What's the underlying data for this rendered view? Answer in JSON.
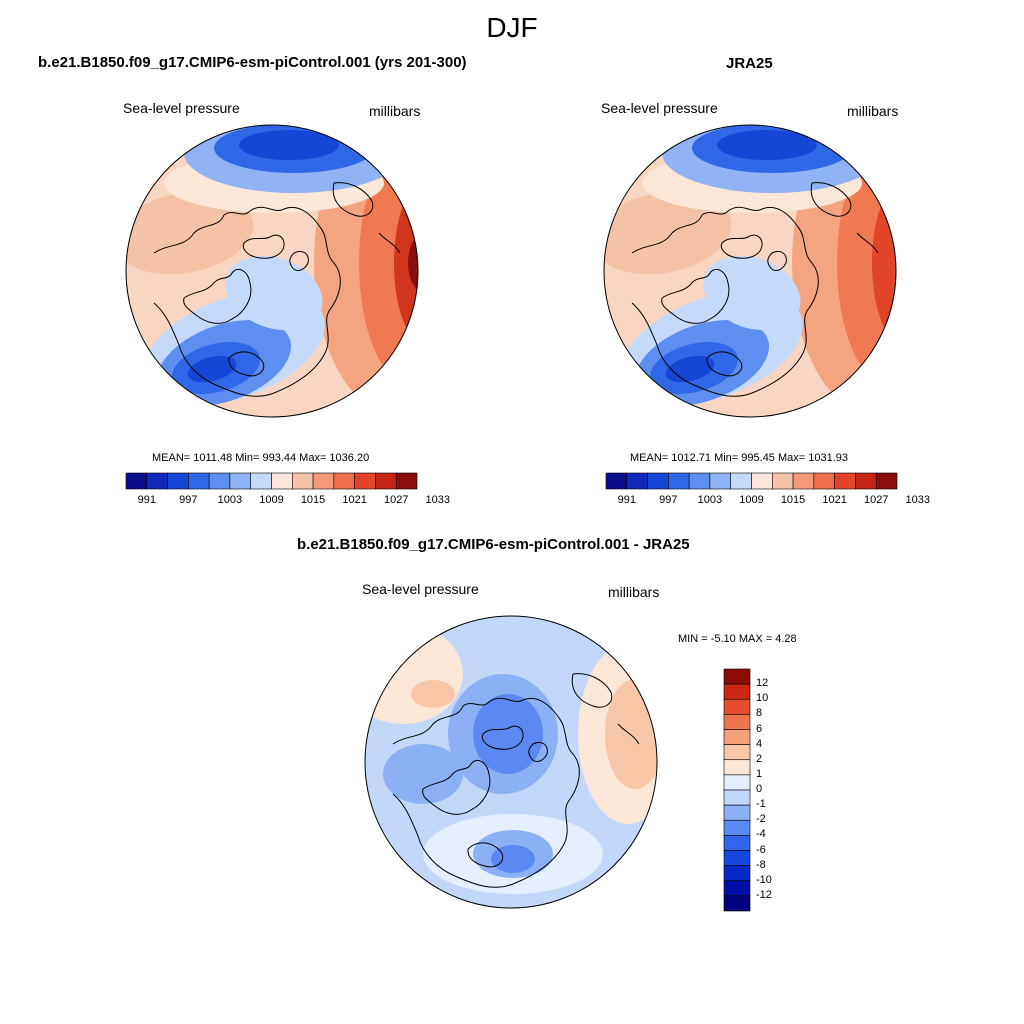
{
  "season": "DJF",
  "colors": {
    "abs_palette": [
      "#0a0d8c",
      "#0f28b8",
      "#1447d6",
      "#2f68e6",
      "#5d8ff0",
      "#8fb3f5",
      "#c5dafa",
      "#fbe6d8",
      "#f6c2a6",
      "#f49a78",
      "#ef6f4c",
      "#e2442a",
      "#c52313",
      "#8a0f0a"
    ],
    "diff_palette": [
      "#00007f",
      "#0010a6",
      "#0529c4",
      "#1447dd",
      "#2f66ec",
      "#5a89f2",
      "#8cb0f6",
      "#c3d7fa",
      "#e4eefc",
      "#fbe7d8",
      "#f8c7a8",
      "#f4a07a",
      "#ef7550",
      "#e54b2c",
      "#cc2614",
      "#8e0b08"
    ]
  },
  "panels": {
    "model": {
      "title": "b.e21.B1850.f09_g17.CMIP6-esm-piControl.001 (yrs 201-300)",
      "variable": "Sea-level pressure",
      "units": "millibars",
      "stats": "MEAN= 1011.48  Min= 993.44  Max= 1036.20"
    },
    "obs": {
      "title": "JRA25",
      "variable": "Sea-level pressure",
      "units": "millibars",
      "stats": "MEAN= 1012.71  Min= 995.45  Max= 1031.93"
    },
    "diff": {
      "title": "b.e21.B1850.f09_g17.CMIP6-esm-piControl.001 - JRA25",
      "variable": "Sea-level pressure",
      "units": "millibars",
      "stats": "MIN =  -5.10 MAX =   4.28"
    }
  },
  "colorbar_abs": {
    "labels": [
      "991",
      "997",
      "1003",
      "1009",
      "1015",
      "1021",
      "1027",
      "1033"
    ]
  },
  "colorbar_diff": {
    "labels": [
      "12",
      "10",
      "8",
      "6",
      "4",
      "2",
      "1",
      "0",
      "-1",
      "-2",
      "-4",
      "-6",
      "-8",
      "-10",
      "-12"
    ]
  }
}
